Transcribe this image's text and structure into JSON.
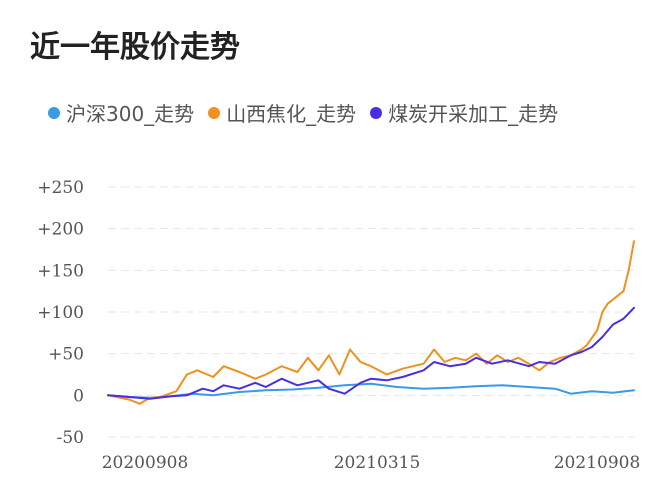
{
  "chart_data": {
    "type": "line",
    "title": "近一年股价走势",
    "legend_position": "top",
    "grid": true,
    "ylim": [
      -50,
      250
    ],
    "yticks": [
      "-50",
      "0",
      "+50",
      "+100",
      "+150",
      "+200",
      "+250"
    ],
    "xticks": [
      "20200908",
      "20210315",
      "20210908"
    ],
    "x_range": [
      0,
      100
    ],
    "series": [
      {
        "name": "沪深300_走势",
        "color": "#3a9ae8",
        "x": [
          0,
          4,
          8,
          12,
          16,
          20,
          25,
          30,
          35,
          40,
          45,
          50,
          55,
          60,
          65,
          70,
          75,
          80,
          85,
          88,
          92,
          96,
          100
        ],
        "values": [
          0,
          -2,
          -3,
          -1,
          2,
          0,
          4,
          6,
          7,
          9,
          12,
          14,
          10,
          8,
          9,
          11,
          12,
          10,
          8,
          2,
          5,
          3,
          6
        ]
      },
      {
        "name": "山西焦化_走势",
        "color": "#f0901e",
        "x": [
          0,
          4,
          6,
          8,
          10,
          13,
          15,
          17,
          20,
          22,
          25,
          28,
          30,
          33,
          36,
          38,
          40,
          42,
          44,
          46,
          48,
          50,
          53,
          56,
          60,
          62,
          64,
          66,
          68,
          70,
          72,
          74,
          76,
          78,
          80,
          82,
          84,
          86,
          88,
          90,
          91,
          93,
          94,
          95,
          96,
          97,
          98,
          99,
          100
        ],
        "values": [
          0,
          -5,
          -10,
          -3,
          -2,
          5,
          25,
          30,
          22,
          35,
          28,
          20,
          25,
          35,
          28,
          45,
          30,
          48,
          25,
          55,
          40,
          35,
          25,
          32,
          38,
          55,
          40,
          45,
          42,
          50,
          38,
          48,
          40,
          45,
          38,
          30,
          40,
          45,
          48,
          55,
          60,
          78,
          100,
          110,
          115,
          120,
          125,
          150,
          185
        ]
      },
      {
        "name": "煤炭开采加工_走势",
        "color": "#4a2ee0",
        "x": [
          0,
          4,
          8,
          12,
          15,
          18,
          20,
          22,
          25,
          28,
          30,
          33,
          36,
          40,
          42,
          45,
          48,
          50,
          53,
          56,
          60,
          62,
          65,
          68,
          70,
          73,
          76,
          80,
          82,
          85,
          88,
          90,
          92,
          94,
          96,
          98,
          100
        ],
        "values": [
          0,
          -2,
          -4,
          -1,
          0,
          8,
          5,
          12,
          8,
          15,
          10,
          20,
          12,
          18,
          8,
          2,
          15,
          20,
          18,
          22,
          30,
          40,
          35,
          38,
          45,
          38,
          42,
          35,
          40,
          38,
          48,
          52,
          58,
          70,
          85,
          92,
          105
        ]
      }
    ]
  }
}
